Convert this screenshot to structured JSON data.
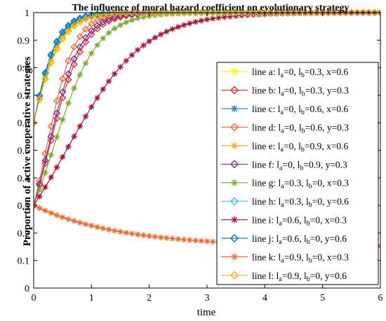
{
  "chart_data": {
    "type": "line",
    "title": "The influence of moral hazard coefficient on evolutionary strategy",
    "xlabel": "time",
    "ylabel": "Proportion of active cooperative strategies",
    "xlim": [
      0,
      6
    ],
    "ylim": [
      0,
      1
    ],
    "xticks": [
      "0",
      "1",
      "2",
      "3",
      "4",
      "5",
      "6"
    ],
    "yticks": [
      "0",
      "0.1",
      "0.2",
      "0.3",
      "0.4",
      "0.5",
      "0.6",
      "0.7",
      "0.8",
      "0.9",
      "1"
    ],
    "grid": false,
    "legend_position": "right",
    "series": [
      {
        "name": "line a: la=0, lb=0.3, x=0.6",
        "legend": {
          "prefix": "line a: ",
          "la": "0",
          "lb": "0.3",
          "last": "x=0.6"
        },
        "color": "#ffff00",
        "marker": "asterisk",
        "x0": 0.6,
        "rate": 3.6
      },
      {
        "name": "line b: la=0, lb=0.3, y=0.3",
        "legend": {
          "prefix": "line b: ",
          "la": "0",
          "lb": "0.3",
          "last": "y=0.3"
        },
        "color": "#e8322d",
        "marker": "diamond",
        "x0": 0.3,
        "rate": 3.3
      },
      {
        "name": "line c: la=0, lb=0.6, x=0.6",
        "legend": {
          "prefix": "line c: ",
          "la": "0",
          "lb": "0.6",
          "last": "x=0.6"
        },
        "color": "#1f77d0",
        "marker": "asterisk",
        "x0": 0.6,
        "rate": 4.2
      },
      {
        "name": "line d: la=0, lb=0.6, y=0.3",
        "legend": {
          "prefix": "line d: ",
          "la": "0",
          "lb": "0.6",
          "last": "y=0.3"
        },
        "color": "#f4683a",
        "marker": "diamond",
        "x0": 0.3,
        "rate": 4.0
      },
      {
        "name": "line e: la=0, lb=0.9, x=0.6",
        "legend": {
          "prefix": "line e: ",
          "la": "0",
          "lb": "0.9",
          "last": "x=0.6"
        },
        "color": "#f5a623",
        "marker": "asterisk",
        "x0": 0.6,
        "rate": 3.9
      },
      {
        "name": "line f: la=0, lb=0.9, y=0.3",
        "legend": {
          "prefix": "line f: ",
          "la": "0",
          "lb": "0.9",
          "last": "y=0.3"
        },
        "color": "#7e2f8e",
        "marker": "diamond",
        "x0": 0.3,
        "rate": 3.5
      },
      {
        "name": "line g: la=0.3, lb=0, x=0.3",
        "legend": {
          "prefix": "line g: ",
          "la": "0.3",
          "lb": "0",
          "last": "x=0.3"
        },
        "color": "#77ac30",
        "marker": "asterisk",
        "x0": 0.3,
        "rate": 2.6
      },
      {
        "name": "line h: la=0.3, lb=0, y=0.6",
        "legend": {
          "prefix": "line h: ",
          "la": "0.3",
          "lb": "0",
          "last": "y=0.6"
        },
        "color": "#4dbeee",
        "marker": "diamond",
        "x0": 0.6,
        "rate": 4.4
      },
      {
        "name": "line i: la=0.6, lb=0, x=0.3",
        "legend": {
          "prefix": "line i: ",
          "la": "0.6",
          "lb": "0",
          "last": "x=0.3"
        },
        "color": "#a2142f",
        "marker": "asterisk",
        "x0": 0.3,
        "rate": 1.5
      },
      {
        "name": "line j: la=0.6, lb=0, y=0.6",
        "legend": {
          "prefix": "line j: ",
          "la": "0.6",
          "lb": "0",
          "last": "y=0.6"
        },
        "color": "#0072bd",
        "marker": "diamond",
        "x0": 0.6,
        "rate": 4.3
      },
      {
        "name": "line k: la=0.9, lb=0, x=0.3",
        "legend": {
          "prefix": "line k: ",
          "la": "0.9",
          "lb": "0",
          "last": "x=0.3"
        },
        "color": "#ee6a2a",
        "marker": "asterisk",
        "x0": 0.3,
        "rate": -0.15
      },
      {
        "name": "line l: la=0.9, lb=0, y=0.6",
        "legend": {
          "prefix": "line l: ",
          "la": "0.9",
          "lb": "0",
          "last": "y=0.6"
        },
        "color": "#f2b01e",
        "marker": "diamond",
        "x0": 0.6,
        "rate": 3.7
      }
    ]
  }
}
